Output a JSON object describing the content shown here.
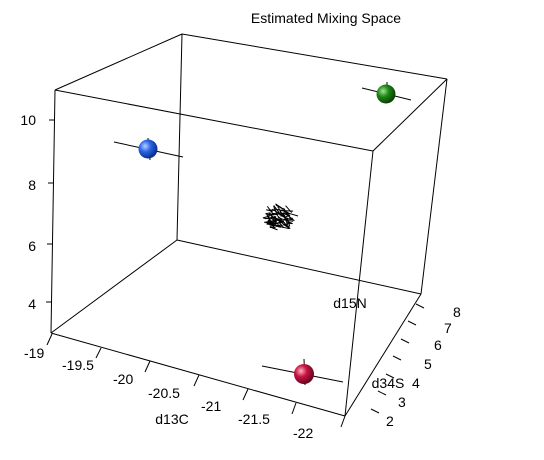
{
  "chart_data": {
    "type": "scatter3d",
    "title": "Estimated Mixing Space",
    "xlabel": "d13C",
    "ylabel": "d15N",
    "zlabel": "d34S",
    "xlim": [
      -22.0,
      -19.0
    ],
    "ylim": [
      3.0,
      11.0
    ],
    "zlim": [
      1.5,
      8.0
    ],
    "x_ticks": [
      "-19",
      "-19.5",
      "-20",
      "-20.5",
      "-21",
      "-21.5",
      "-22"
    ],
    "y_ticks": [
      "4",
      "6",
      "8",
      "10"
    ],
    "z_ticks": [
      "2",
      "3",
      "4",
      "5",
      "6",
      "7",
      "8"
    ],
    "sources": [
      {
        "name": "source-blue",
        "color": "#1a55d6",
        "x": -19.4,
        "y": 10.2,
        "z": 4.0
      },
      {
        "name": "source-green",
        "color": "#1c7a12",
        "x": -21.9,
        "y": 10.8,
        "z": 7.8
      },
      {
        "name": "source-red",
        "color": "#c0103a",
        "x": -21.8,
        "y": 5.2,
        "z": 1.8
      }
    ],
    "mixture": {
      "name": "mixture-cloud",
      "color": "#000000",
      "x": -20.7,
      "y": 7.0,
      "z": 4.2
    }
  }
}
